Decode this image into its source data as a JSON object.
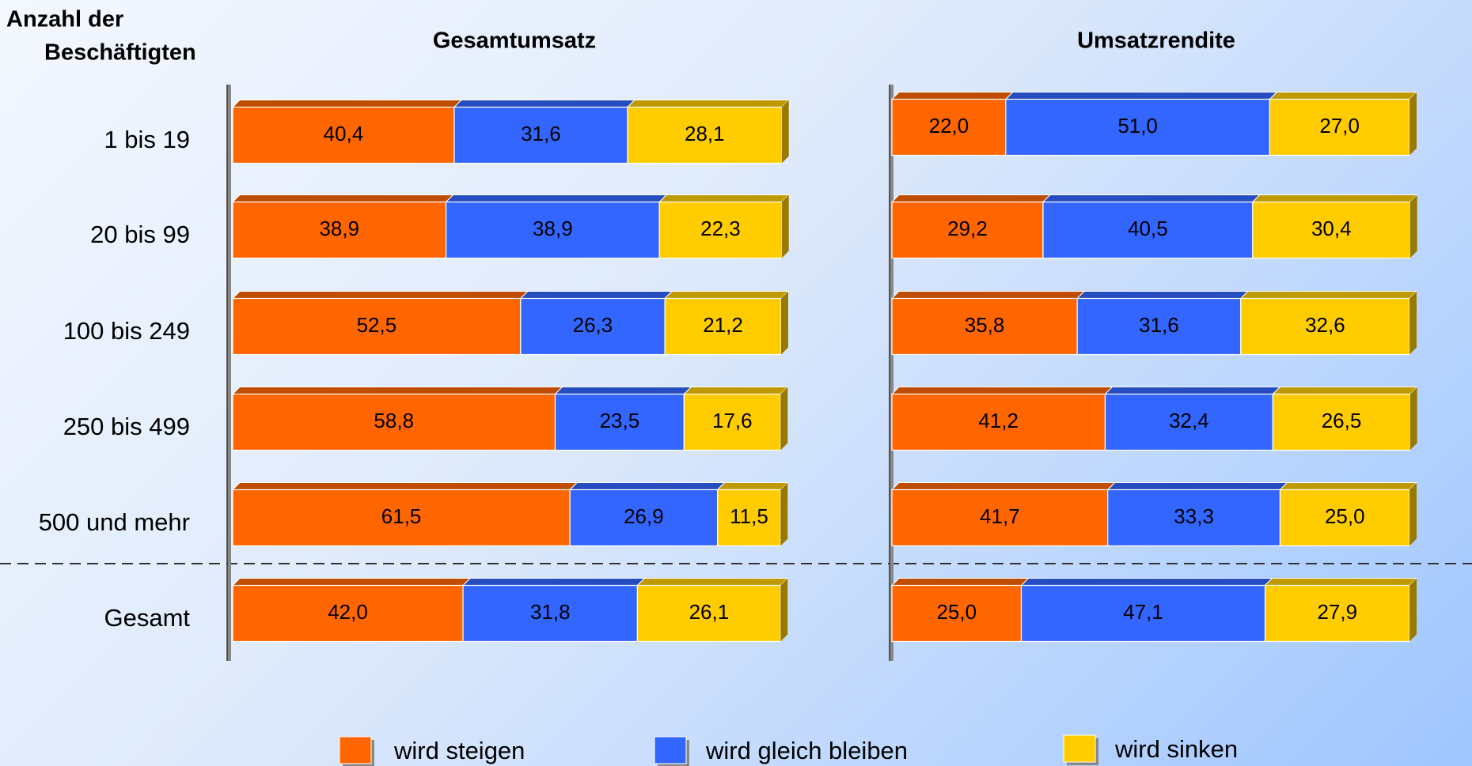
{
  "chart_data": {
    "type": "bar",
    "stacked": true,
    "orientation": "horizontal",
    "category_label": [
      "Anzahl der",
      "Beschäftigten"
    ],
    "categories": [
      "1 bis 19",
      "20 bis 99",
      "100 bis 249",
      "250 bis 499",
      "500 und mehr",
      "Gesamt"
    ],
    "series": [
      {
        "name": "wird steigen",
        "color": "#ff6600"
      },
      {
        "name": "wird gleich bleiben",
        "color": "#3366ff"
      },
      {
        "name": "wird sinken",
        "color": "#ffcc00"
      }
    ],
    "xlim": [
      0,
      100
    ],
    "panels": [
      {
        "title": "Gesamtumsatz",
        "series": [
          {
            "values": [
              40.4,
              38.9,
              52.5,
              58.8,
              61.5,
              42.0
            ],
            "value_labels": [
              "40,4",
              "38,9",
              "52,5",
              "58,8",
              "61,5",
              "42,0"
            ]
          },
          {
            "values": [
              31.6,
              38.9,
              26.3,
              23.5,
              26.9,
              31.8
            ],
            "value_labels": [
              "31,6",
              "38,9",
              "26,3",
              "23,5",
              "26,9",
              "31,8"
            ]
          },
          {
            "values": [
              28.1,
              22.3,
              21.2,
              17.6,
              11.5,
              26.1
            ],
            "value_labels": [
              "28,1",
              "22,3",
              "21,2",
              "17,6",
              "11,5",
              "26,1"
            ]
          }
        ]
      },
      {
        "title": "Umsatzrendite",
        "series": [
          {
            "values": [
              22.0,
              29.2,
              35.8,
              41.2,
              41.7,
              25.0
            ],
            "value_labels": [
              "22,0",
              "29,2",
              "35,8",
              "41,2",
              "41,7",
              "25,0"
            ]
          },
          {
            "values": [
              51.0,
              40.5,
              31.6,
              32.4,
              33.3,
              47.1
            ],
            "value_labels": [
              "51,0",
              "40,5",
              "31,6",
              "32,4",
              "33,3",
              "47,1"
            ]
          },
          {
            "values": [
              27.0,
              30.4,
              32.6,
              26.5,
              25.0,
              27.9
            ],
            "value_labels": [
              "27,0",
              "30,4",
              "32,6",
              "26,5",
              "25,0",
              "27,9"
            ]
          }
        ]
      }
    ]
  }
}
